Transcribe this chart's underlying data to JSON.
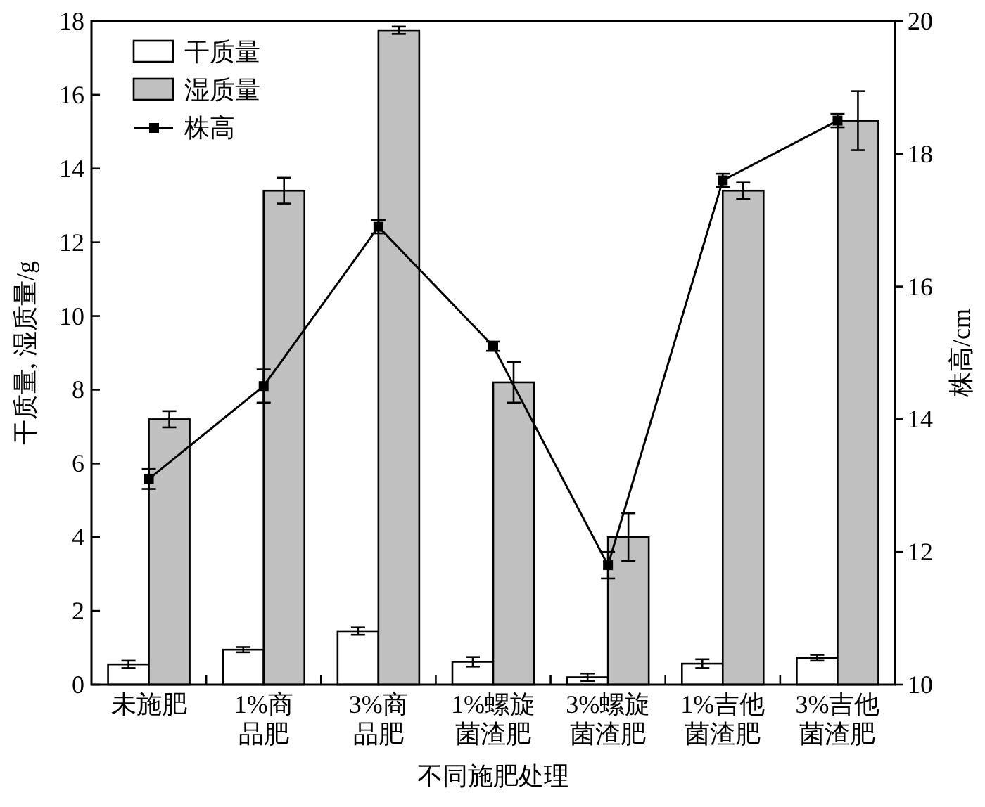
{
  "chart_data": {
    "type": "bar",
    "xlabel": "不同施肥处理",
    "ylabel": "干质量, 湿质量/g",
    "y2label": "株高/cm",
    "categories": [
      "未施肥",
      "1%商品肥",
      "3%商品肥",
      "1%螺旋菌渣肥",
      "3%螺旋菌渣肥",
      "1%吉他菌渣肥",
      "3%吉他菌渣肥"
    ],
    "series": [
      {
        "name": "干质量",
        "color": "#ffffff",
        "values": [
          0.55,
          0.95,
          1.45,
          0.62,
          0.2,
          0.57,
          0.73
        ],
        "errors": [
          0.1,
          0.07,
          0.1,
          0.13,
          0.1,
          0.12,
          0.08
        ]
      },
      {
        "name": "湿质量",
        "color": "#c0c0c0",
        "values": [
          7.2,
          13.4,
          17.75,
          8.2,
          4.0,
          13.4,
          15.3
        ],
        "errors": [
          0.22,
          0.35,
          0.1,
          0.55,
          0.65,
          0.22,
          0.8
        ]
      },
      {
        "name": "株高",
        "type": "line",
        "axis": "y2",
        "color": "#000000",
        "values": [
          13.1,
          14.5,
          16.9,
          15.1,
          11.8,
          17.6,
          18.5
        ],
        "errors": [
          0.15,
          0.25,
          0.1,
          0.07,
          0.2,
          0.1,
          0.1
        ]
      }
    ],
    "ylim": [
      0,
      18
    ],
    "yticks": [
      0,
      2,
      4,
      6,
      8,
      10,
      12,
      14,
      16,
      18
    ],
    "y2lim": [
      10,
      20
    ],
    "y2ticks": [
      10,
      12,
      14,
      16,
      18,
      20
    ],
    "legend": "top left",
    "marker": "square",
    "line_style": "solid"
  }
}
